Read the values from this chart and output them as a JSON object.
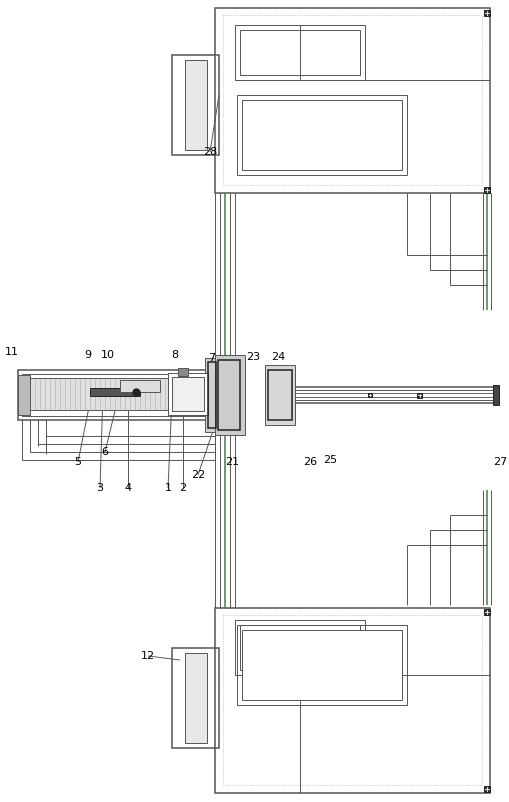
{
  "bg_color": "#ffffff",
  "lc": "#555555",
  "dc": "#222222",
  "gc": "#4a7a4a",
  "fig_width": 5.09,
  "fig_height": 8.02,
  "dpi": 100
}
